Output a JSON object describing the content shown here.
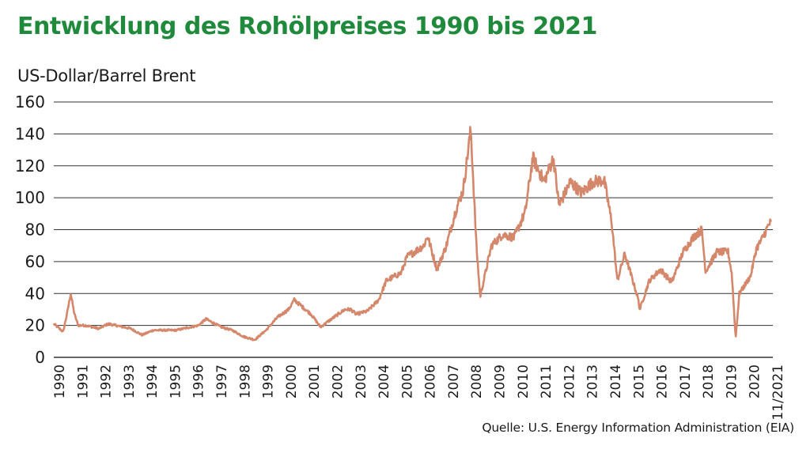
{
  "title": "Entwicklung des Rohölpreises 1990 bis 2021",
  "source": "Quelle: U.S. Energy Information Administration (EIA)",
  "colors": {
    "title": "#1f8a3c",
    "line": "#d4876a",
    "grid": "#333333",
    "text": "#1a1a1a"
  },
  "chart_data": {
    "type": "line",
    "title": "Entwicklung des Rohölpreises 1990 bis 2021",
    "ylabel": "US-Dollar/Barrel Brent",
    "xlabel": "",
    "ylim": [
      0,
      160
    ],
    "y_ticks": [
      0,
      20,
      40,
      60,
      80,
      100,
      120,
      140,
      160
    ],
    "x_ticks": [
      "1990",
      "1991",
      "1992",
      "1993",
      "1994",
      "1995",
      "1996",
      "1997",
      "1998",
      "1999",
      "2000",
      "2001",
      "2002",
      "2003",
      "2004",
      "2005",
      "2006",
      "2007",
      "2008",
      "2009",
      "2010",
      "2011",
      "2012",
      "2013",
      "2014",
      "2015",
      "2016",
      "2017",
      "2018",
      "2019",
      "2020",
      "11/2021"
    ],
    "grid": "horizontal",
    "series": [
      {
        "x": [
          "1990-01",
          "1990-03",
          "1990-06",
          "1990-08",
          "1990-10",
          "1990-12",
          "1991-02",
          "1991-06",
          "1992-01",
          "1992-06",
          "1993-06",
          "1993-12",
          "1994-06",
          "1995-06",
          "1996-06",
          "1996-10",
          "1997-06",
          "1997-12",
          "1998-06",
          "1998-12",
          "1999-06",
          "1999-12",
          "2000-06",
          "2000-09",
          "2001-06",
          "2001-11",
          "2002-06",
          "2002-12",
          "2003-03",
          "2003-06",
          "2003-12",
          "2004-06",
          "2004-10",
          "2005-06",
          "2005-09",
          "2006-06",
          "2006-08",
          "2007-01",
          "2007-06",
          "2007-11",
          "2008-03",
          "2008-07",
          "2008-10",
          "2008-12",
          "2009-06",
          "2009-12",
          "2010-06",
          "2010-12",
          "2011-04",
          "2011-10",
          "2012-03",
          "2012-06",
          "2012-12",
          "2013-06",
          "2013-12",
          "2014-06",
          "2014-10",
          "2015-01",
          "2015-05",
          "2015-12",
          "2016-01",
          "2016-06",
          "2016-12",
          "2017-06",
          "2017-12",
          "2018-06",
          "2018-10",
          "2018-12",
          "2019-06",
          "2019-12",
          "2020-02",
          "2020-04",
          "2020-06",
          "2020-12",
          "2021-03",
          "2021-06",
          "2021-10",
          "2021-11"
        ],
        "values": [
          21,
          19,
          16,
          27,
          40,
          27,
          20,
          20,
          18,
          21,
          18,
          14,
          17,
          17,
          20,
          24,
          19,
          17,
          13,
          11,
          17,
          25,
          30,
          36,
          27,
          19,
          25,
          30,
          30,
          27,
          29,
          36,
          48,
          53,
          63,
          70,
          76,
          55,
          70,
          92,
          105,
          143,
          70,
          38,
          70,
          77,
          75,
          91,
          125,
          110,
          125,
          95,
          110,
          103,
          110,
          111,
          85,
          48,
          65,
          37,
          30,
          48,
          55,
          47,
          66,
          76,
          80,
          54,
          66,
          66,
          52,
          12,
          40,
          51,
          68,
          74,
          84,
          84
        ]
      }
    ]
  }
}
